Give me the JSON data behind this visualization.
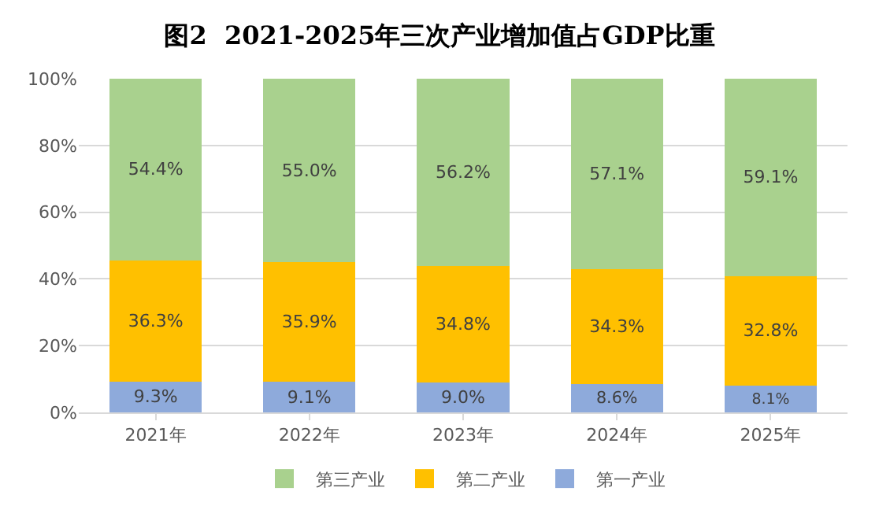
{
  "chart_data": {
    "type": "bar",
    "title": "图2  2021-2025年三次产业增加值占GDP比重",
    "stacked": true,
    "categories": [
      "2021年",
      "2022年",
      "2023年",
      "2024年",
      "2025年"
    ],
    "series": [
      {
        "name": "第一产业",
        "color": "#8eaadb",
        "values": [
          9.3,
          9.1,
          9.0,
          8.6,
          8.1
        ],
        "value_labels": [
          "9.3%",
          "9.1%",
          "9.0%",
          "8.6%",
          "8.1%"
        ]
      },
      {
        "name": "第二产业",
        "color": "#ffc000",
        "values": [
          36.3,
          35.9,
          34.8,
          34.3,
          32.8
        ],
        "value_labels": [
          "36.3%",
          "35.9%",
          "34.8%",
          "34.3%",
          "32.8%"
        ]
      },
      {
        "name": "第三产业",
        "color": "#a9d18e",
        "values": [
          54.4,
          55.0,
          56.2,
          57.1,
          59.1
        ],
        "value_labels": [
          "54.4%",
          "55.0%",
          "56.2%",
          "57.1%",
          "59.1%"
        ]
      }
    ],
    "ylim": [
      0,
      100
    ],
    "yticks": [
      {
        "value": 0,
        "label": "0%"
      },
      {
        "value": 20,
        "label": "20%"
      },
      {
        "value": 40,
        "label": "40%"
      },
      {
        "value": 60,
        "label": "60%"
      },
      {
        "value": 80,
        "label": "80%"
      },
      {
        "value": 100,
        "label": "100%"
      }
    ],
    "grid": "y",
    "legend": "bottom"
  }
}
